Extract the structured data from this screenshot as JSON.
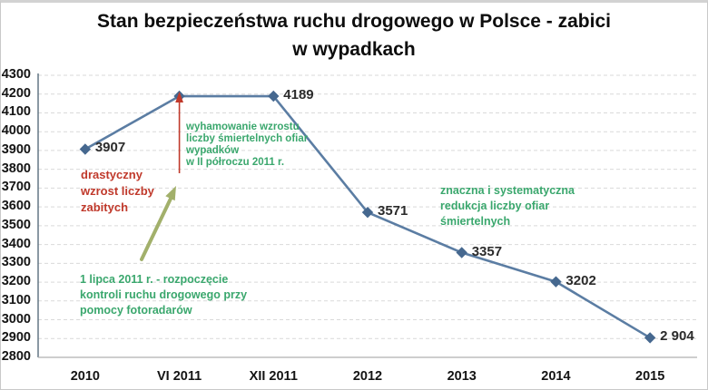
{
  "title": {
    "text": "Stan bezpieczeństwa ruchu drogowego w Polsce - zabici\nw wypadkach"
  },
  "chart_data": {
    "type": "line",
    "title": "Stan bezpieczeństwa ruchu drogowego w Polsce - zabici w wypadkach",
    "categories": [
      "2010",
      "VI 2011",
      "XII 2011",
      "2012",
      "2013",
      "2014",
      "2015"
    ],
    "points": [
      {
        "category": "2010",
        "value": 3907,
        "data_label": "3907"
      },
      {
        "category": "VI 2011",
        "value": 4189,
        "data_label": null
      },
      {
        "category": "XII 2011",
        "value": 4189,
        "data_label": "4189"
      },
      {
        "category": "2012",
        "value": 3571,
        "data_label": "3571"
      },
      {
        "category": "2013",
        "value": 3357,
        "data_label": "3357"
      },
      {
        "category": "2014",
        "value": 3202,
        "data_label": "3202"
      },
      {
        "category": "2015",
        "value": 2904,
        "data_label": "2 904"
      }
    ],
    "xlabel": "",
    "ylabel": "",
    "ylim": [
      2800,
      4300
    ],
    "ytick_step": 100,
    "y_tick_labels": [
      "2800",
      "2900",
      "3000",
      "3100",
      "3200",
      "3300",
      "3400",
      "3500",
      "3600",
      "3700",
      "3800",
      "3900",
      "4000",
      "4100",
      "4200",
      "4300"
    ],
    "grid": "horizontal-dashed",
    "legend": "none",
    "marker": "diamond"
  },
  "annotations": {
    "drastic_increase": {
      "text": "drastyczny\nwzrost liczby\nzabitych",
      "color": "#c0392b"
    },
    "slowdown": {
      "text": "wyhamowanie wzrostu\nliczby śmiertelnych ofiar\nwypadków\nw II półroczu 2011 r.",
      "color": "#3aa76d"
    },
    "systematic_reduction": {
      "text": "znaczna i systematyczna\nredukcja liczby ofiar\nśmiertelnych",
      "color": "#3aa76d"
    },
    "speed_cameras": {
      "text": "1 lipca 2011 r. - rozpoczęcie\nkontroli ruchu drogowego przy\npomocy fotoradarów",
      "color": "#3aa76d"
    }
  },
  "colors": {
    "series_line": "#5b7da3",
    "marker": "#46688f",
    "callout_red": "#c0392b",
    "arrow_olive": "#a2b06b",
    "annotation_green": "#3aa76d",
    "annotation_red": "#c0392b",
    "gridline": "#d9d9d9"
  }
}
